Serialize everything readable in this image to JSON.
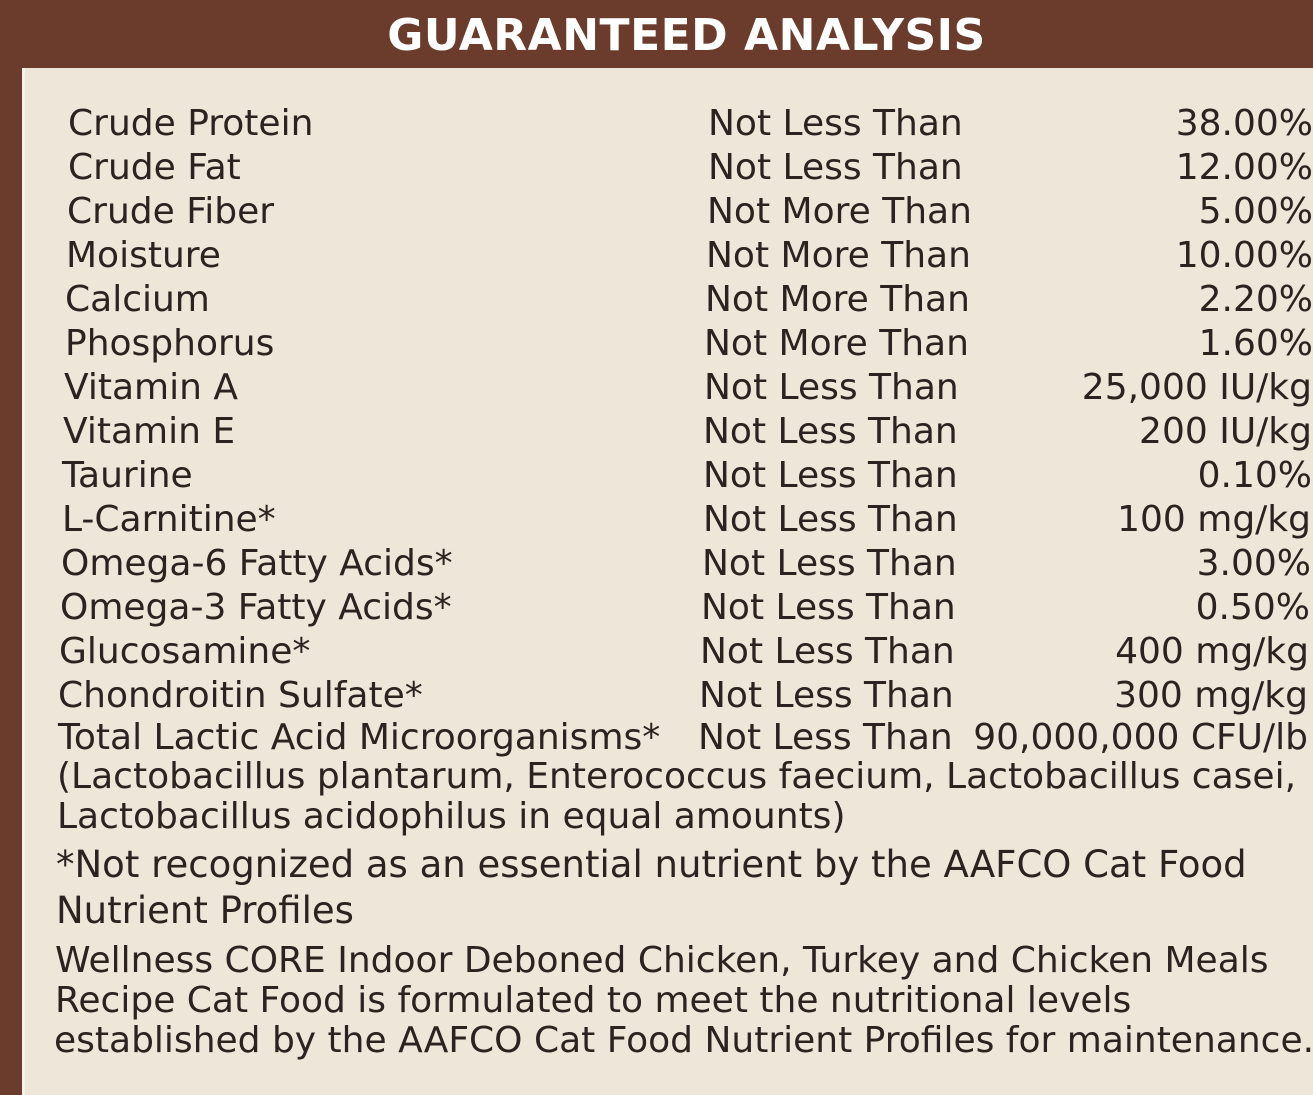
{
  "header": {
    "title": "GUARANTEED ANALYSIS"
  },
  "analysis": [
    {
      "name": "Crude Protein",
      "qualifier": "Not Less Than",
      "value": "38.00%"
    },
    {
      "name": "Crude Fat",
      "qualifier": "Not Less Than",
      "value": "12.00%"
    },
    {
      "name": "Crude Fiber",
      "qualifier": "Not More Than",
      "value": "5.00%"
    },
    {
      "name": "Moisture",
      "qualifier": "Not More Than",
      "value": "10.00%"
    },
    {
      "name": "Calcium",
      "qualifier": "Not More Than",
      "value": "2.20%"
    },
    {
      "name": "Phosphorus",
      "qualifier": "Not More Than",
      "value": "1.60%"
    },
    {
      "name": "Vitamin A",
      "qualifier": "Not Less Than",
      "value": "25,000 IU/kg"
    },
    {
      "name": "Vitamin E",
      "qualifier": "Not Less Than",
      "value": "200 IU/kg"
    },
    {
      "name": "Taurine",
      "qualifier": "Not Less Than",
      "value": "0.10%"
    },
    {
      "name": "L-Carnitine*",
      "qualifier": "Not Less Than",
      "value": "100 mg/kg"
    },
    {
      "name": "Omega-6 Fatty Acids*",
      "qualifier": "Not Less Than",
      "value": "3.00%"
    },
    {
      "name": "Omega-3 Fatty Acids*",
      "qualifier": "Not Less Than",
      "value": "0.50%"
    },
    {
      "name": "Glucosamine*",
      "qualifier": "Not Less Than",
      "value": "400 mg/kg"
    },
    {
      "name": "Chondroitin Sulfate*",
      "qualifier": "Not Less Than",
      "value": "300 mg/kg"
    },
    {
      "name": "Total Lactic Acid Microorganisms*",
      "qualifier": "Not Less Than",
      "value": "90,000,000 CFU/lb"
    }
  ],
  "organisms_note": {
    "line1": "(Lactobacillus plantarum, Enterococcus faecium, Lactobacillus casei,",
    "line2": "Lactobacillus acidophilus in equal amounts)"
  },
  "footnote": {
    "line1": "*Not recognized as an essential nutrient by the AAFCO Cat Food",
    "line2": "Nutrient Profiles"
  },
  "statement": {
    "line1": "Wellness CORE Indoor Deboned Chicken, Turkey and Chicken Meals",
    "line2": "Recipe Cat Food is formulated to meet the nutritional levels",
    "line3": "established by the AAFCO Cat Food Nutrient Profiles for maintenance."
  },
  "colors": {
    "header_bg": "#6b3b2b",
    "panel_bg": "#eee7d9",
    "text": "#2c2320"
  }
}
